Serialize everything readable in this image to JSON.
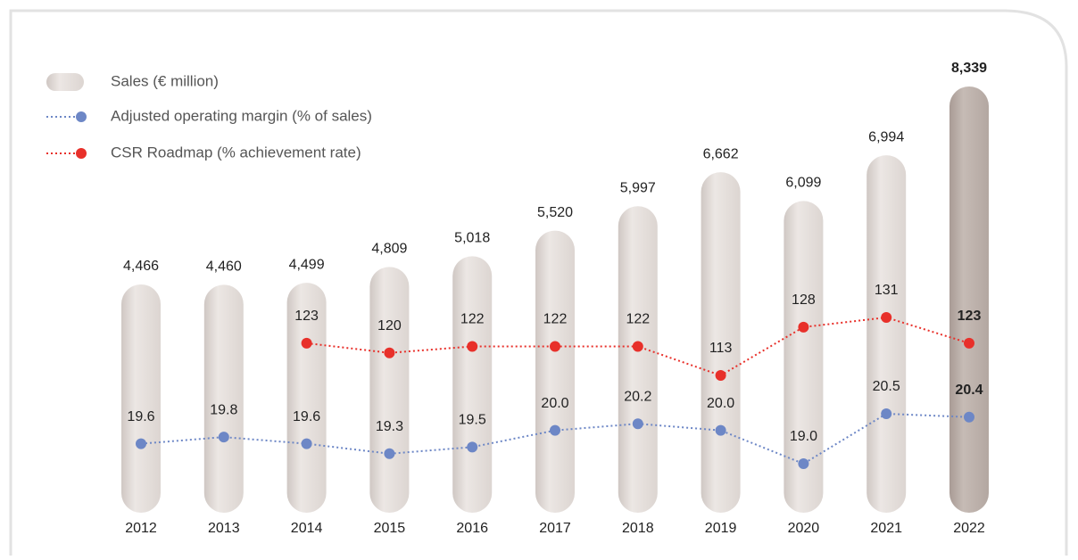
{
  "chart_data": {
    "type": "bar",
    "categories": [
      "2012",
      "2013",
      "2014",
      "2015",
      "2016",
      "2017",
      "2018",
      "2019",
      "2020",
      "2021",
      "2022"
    ],
    "series": [
      {
        "name": "Sales (€ million)",
        "type": "bar",
        "color": "#e6e0dd",
        "highlight_color": "#bdb1ab",
        "values": [
          4466,
          4460,
          4499,
          4809,
          5018,
          5520,
          5997,
          6662,
          6099,
          6994,
          8339
        ],
        "value_labels": [
          "4,466",
          "4,460",
          "4,499",
          "4,809",
          "5,018",
          "5,520",
          "5,997",
          "6,662",
          "6,099",
          "6,994",
          "8,339"
        ]
      },
      {
        "name": "Adjusted operating margin (% of sales)",
        "type": "line",
        "axis": "y2",
        "color": "#6d87c6",
        "values": [
          19.6,
          19.8,
          19.6,
          19.3,
          19.5,
          20.0,
          20.2,
          20.0,
          19.0,
          20.5,
          20.4
        ],
        "value_labels": [
          "19.6",
          "19.8",
          "19.6",
          "19.3",
          "19.5",
          "20.0",
          "20.2",
          "20.0",
          "19.0",
          "20.5",
          "20.4"
        ]
      },
      {
        "name": "CSR Roadmap (% achievement rate)",
        "type": "line",
        "axis": "y3",
        "color": "#e8302a",
        "values": [
          null,
          null,
          123,
          120,
          122,
          122,
          122,
          113,
          128,
          131,
          123
        ],
        "value_labels": [
          null,
          null,
          "123",
          "120",
          "122",
          "122",
          "122",
          "113",
          "128",
          "131",
          "123"
        ]
      }
    ]
  }
}
